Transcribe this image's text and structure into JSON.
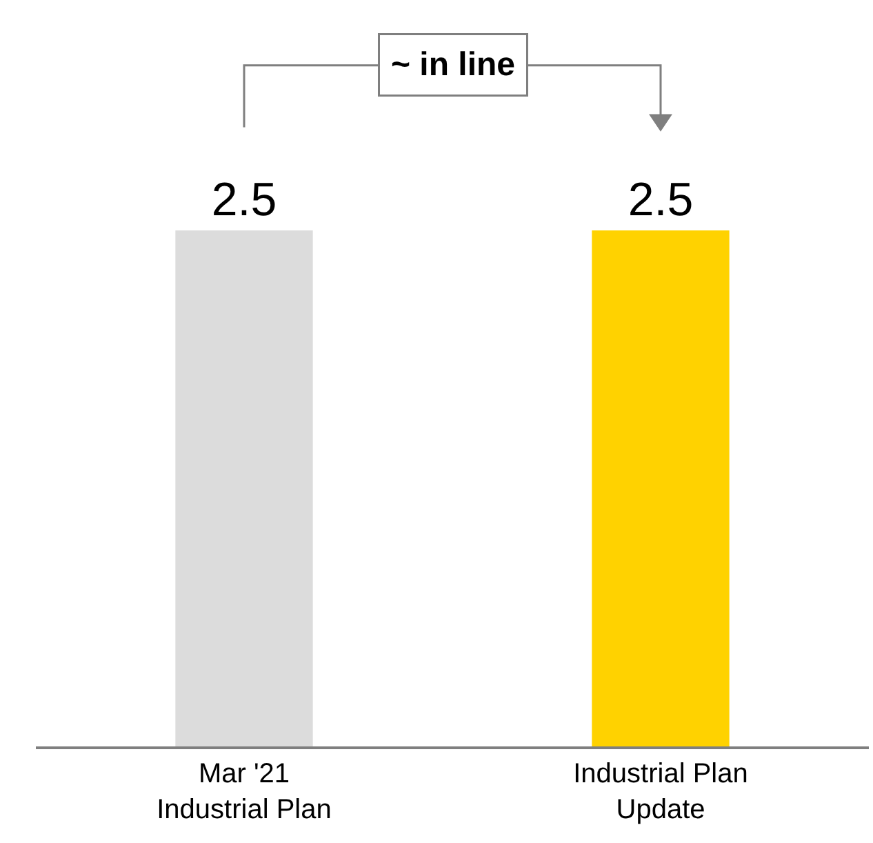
{
  "chart_data": {
    "type": "bar",
    "categories": [
      "Mar '21\nIndustrial Plan",
      "Industrial Plan\nUpdate"
    ],
    "values": [
      2.5,
      2.5
    ],
    "colors": [
      "#dcdcdc",
      "#ffd200"
    ],
    "data_labels": true,
    "legend": false,
    "annotations": [
      "~ in line"
    ]
  }
}
